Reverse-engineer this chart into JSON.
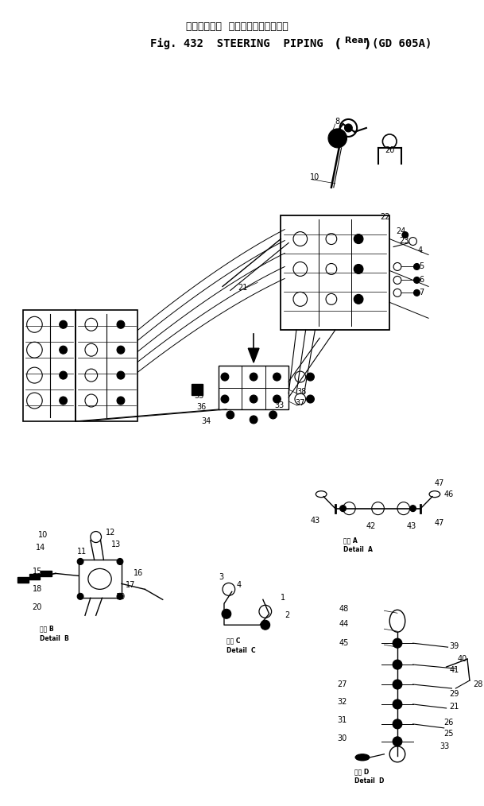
{
  "bg_color": "#ffffff",
  "fg_color": "#000000",
  "fig_width": 6.09,
  "fig_height": 10.14,
  "title_jp": "ステアリング  バイピング（リヤー）",
  "title_line1": "Fig. 432  STEERING  PIPING",
  "title_paren_open": "(",
  "title_rear": " Rear ",
  "title_paren_close": ")",
  "title_model": "(GD 605A)"
}
